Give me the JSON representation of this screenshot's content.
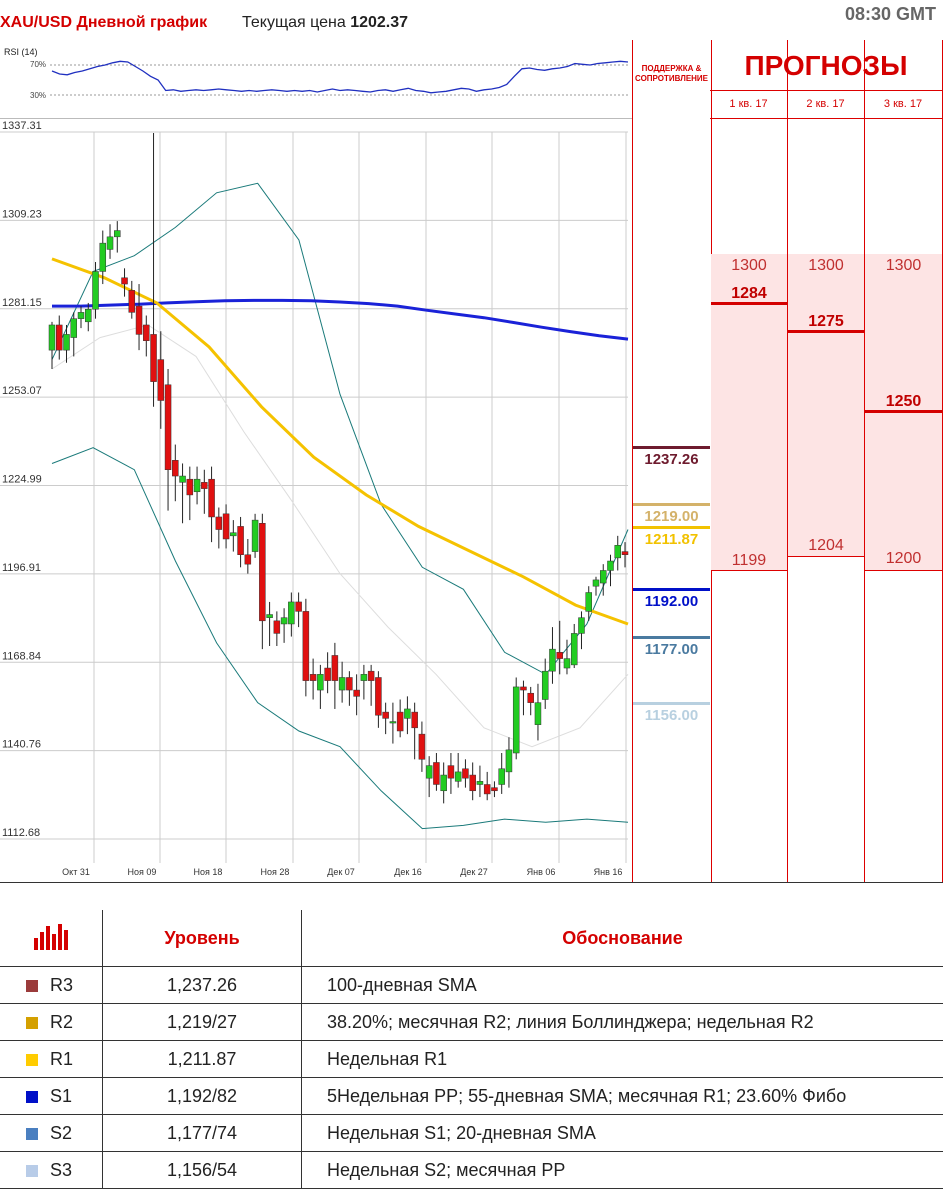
{
  "header": {
    "title": "XAU/USD Дневной график",
    "price_label": "Текущая цена",
    "price_value": "1202.37",
    "time": "08:30 GMT"
  },
  "rsi": {
    "label": "RSI (14)",
    "level_high": "70%",
    "level_low": "30%",
    "values": [
      62,
      58,
      57,
      60,
      62,
      65,
      68,
      70,
      73,
      75,
      74,
      68,
      62,
      55,
      50,
      36,
      37,
      35,
      36,
      37,
      36,
      37,
      38,
      37,
      36,
      35,
      36,
      35,
      36,
      37,
      36,
      35,
      36,
      35,
      36,
      34,
      36,
      38,
      36,
      37,
      36,
      35,
      34,
      36,
      37,
      35,
      37,
      39,
      36,
      35,
      33,
      34,
      35,
      37,
      39,
      38,
      35,
      37,
      38,
      40,
      44,
      55,
      65,
      66,
      64,
      63,
      65,
      66,
      68,
      72,
      71,
      70,
      72,
      73,
      74,
      75,
      74
    ]
  },
  "chart_data": {
    "type": "candlestick",
    "y_ticks": [
      "1337.31",
      "1309.23",
      "1281.15",
      "1253.07",
      "1224.99",
      "1196.91",
      "1168.84",
      "1140.76",
      "1112.68"
    ],
    "ylim": [
      1112.68,
      1337.31
    ],
    "x_ticks": [
      "Окт 31",
      "Ноя 09",
      "Ноя 18",
      "Ноя 28",
      "Дек 07",
      "Дек 16",
      "Дек 27",
      "Янв 06",
      "Янв 16"
    ],
    "candles": [
      [
        1268,
        1276,
        1262,
        1277
      ],
      [
        1276,
        1268,
        1265,
        1279
      ],
      [
        1268,
        1273,
        1264,
        1276
      ],
      [
        1272,
        1278,
        1266,
        1280
      ],
      [
        1278,
        1280,
        1275,
        1282
      ],
      [
        1277,
        1281,
        1274,
        1283
      ],
      [
        1281,
        1293,
        1278,
        1296
      ],
      [
        1293,
        1302,
        1289,
        1306
      ],
      [
        1300,
        1304,
        1297,
        1308
      ],
      [
        1304,
        1306,
        1299,
        1309
      ],
      [
        1291,
        1289,
        1285,
        1294
      ],
      [
        1287,
        1280,
        1278,
        1290
      ],
      [
        1282,
        1273,
        1268,
        1289
      ],
      [
        1276,
        1271,
        1266,
        1279
      ],
      [
        1273,
        1258,
        1250,
        1337
      ],
      [
        1265,
        1252,
        1243,
        1274
      ],
      [
        1257,
        1230,
        1217,
        1262
      ],
      [
        1233,
        1228,
        1220,
        1238
      ],
      [
        1226,
        1228,
        1213,
        1232
      ],
      [
        1227,
        1222,
        1214,
        1231
      ],
      [
        1223,
        1227,
        1219,
        1231
      ],
      [
        1226,
        1224,
        1216,
        1230
      ],
      [
        1227,
        1215,
        1207,
        1231
      ],
      [
        1215,
        1211,
        1205,
        1218
      ],
      [
        1216,
        1208,
        1205,
        1219
      ],
      [
        1209,
        1210,
        1204,
        1214
      ],
      [
        1212,
        1203,
        1199,
        1215
      ],
      [
        1203,
        1200,
        1197,
        1208
      ],
      [
        1204,
        1214,
        1202,
        1216
      ],
      [
        1213,
        1182,
        1173,
        1216
      ],
      [
        1183,
        1184,
        1174,
        1188
      ],
      [
        1182,
        1178,
        1174,
        1185
      ],
      [
        1181,
        1183,
        1175,
        1186
      ],
      [
        1181,
        1188,
        1177,
        1191
      ],
      [
        1188,
        1185,
        1180,
        1191
      ],
      [
        1185,
        1163,
        1158,
        1189
      ],
      [
        1165,
        1163,
        1157,
        1170
      ],
      [
        1160,
        1165,
        1154,
        1168
      ],
      [
        1167,
        1163,
        1159,
        1172
      ],
      [
        1171,
        1163,
        1154,
        1175
      ],
      [
        1160,
        1164,
        1156,
        1169
      ],
      [
        1164,
        1160,
        1155,
        1166
      ],
      [
        1160,
        1158,
        1152,
        1165
      ],
      [
        1163,
        1165,
        1157,
        1168
      ],
      [
        1166,
        1163,
        1155,
        1168
      ],
      [
        1164,
        1152,
        1148,
        1166
      ],
      [
        1153,
        1151,
        1146,
        1156
      ],
      [
        1150,
        1150,
        1143,
        1156
      ],
      [
        1153,
        1147,
        1145,
        1157
      ],
      [
        1151,
        1154,
        1146,
        1158
      ],
      [
        1153,
        1148,
        1138,
        1156
      ],
      [
        1146,
        1138,
        1134,
        1150
      ],
      [
        1132,
        1136,
        1126,
        1139
      ],
      [
        1137,
        1130,
        1128,
        1140
      ],
      [
        1128,
        1133,
        1124,
        1137
      ],
      [
        1136,
        1132,
        1127,
        1140
      ],
      [
        1131,
        1134,
        1129,
        1140
      ],
      [
        1135,
        1132,
        1129,
        1138
      ],
      [
        1133,
        1128,
        1125,
        1137
      ],
      [
        1130,
        1131,
        1126,
        1136
      ],
      [
        1130,
        1127,
        1125,
        1134
      ],
      [
        1129,
        1128,
        1126,
        1131
      ],
      [
        1130,
        1135,
        1127,
        1140
      ],
      [
        1134,
        1141,
        1129,
        1145
      ],
      [
        1140,
        1161,
        1138,
        1164
      ],
      [
        1161,
        1160,
        1152,
        1163
      ],
      [
        1159,
        1156,
        1152,
        1161
      ],
      [
        1149,
        1156,
        1144,
        1162
      ],
      [
        1157,
        1166,
        1154,
        1170
      ],
      [
        1166,
        1173,
        1162,
        1180
      ],
      [
        1172,
        1170,
        1165,
        1182
      ],
      [
        1167,
        1170,
        1165,
        1176
      ],
      [
        1168,
        1178,
        1167,
        1181
      ],
      [
        1178,
        1183,
        1173,
        1185
      ],
      [
        1185,
        1191,
        1182,
        1193
      ],
      [
        1193,
        1195,
        1190,
        1196
      ],
      [
        1194,
        1198,
        1190,
        1200
      ],
      [
        1198,
        1201,
        1193,
        1203
      ],
      [
        1202,
        1206,
        1198,
        1209
      ],
      [
        1204,
        1203,
        1199,
        1207
      ]
    ],
    "sma_blue": [
      1282,
      1282,
      1282.3,
      1282.6,
      1283,
      1283.4,
      1283.7,
      1283.8,
      1283.8,
      1283.7,
      1283.3,
      1282.8,
      1282,
      1280.7,
      1279.5,
      1278.3,
      1276.8,
      1275.3,
      1273.9,
      1272.6,
      1271.5
    ],
    "sma_yellow": [
      1297,
      1291,
      1283,
      1269,
      1250,
      1234,
      1222,
      1212,
      1204,
      1196,
      1187,
      1181
    ],
    "bollinger_upper": [
      1265,
      1293,
      1298,
      1307,
      1318,
      1321,
      1303,
      1254,
      1219,
      1199,
      1192,
      1172,
      1165,
      1181,
      1211
    ],
    "bollinger_lower": [
      1232,
      1237,
      1230,
      1201,
      1175,
      1156,
      1147,
      1142,
      1128,
      1116,
      1117,
      1119,
      1118,
      1119,
      1118
    ],
    "bollinger_mid": [
      1262,
      1272,
      1276,
      1266,
      1242,
      1220,
      1197,
      1180,
      1165,
      1148,
      1142,
      1148,
      1165
    ],
    "axis_labels": {
      "x": "",
      "y": ""
    }
  },
  "support_resistance": {
    "header": "ПОДДЕРЖКА & СОПРОТИВЛЕНИЕ",
    "levels": [
      {
        "label": "1237.26",
        "value": 1237.26,
        "color": "#6e1b2e"
      },
      {
        "label": "1219.00",
        "value": 1219.0,
        "color": "#d4b26a"
      },
      {
        "label": "1211.87",
        "value": 1211.87,
        "color": "#f2c200"
      },
      {
        "label": "1192.00",
        "value": 1192.0,
        "color": "#0010c8"
      },
      {
        "label": "1177.00",
        "value": 1177.0,
        "color": "#4a7aa0"
      },
      {
        "label": "1156.00",
        "value": 1156.0,
        "color": "#b8d0e0"
      }
    ]
  },
  "forecasts": {
    "title": "ПРОГНОЗЫ",
    "quarters": [
      {
        "label": "1 кв. 17",
        "high": "1300",
        "target": "1284",
        "low": "1199"
      },
      {
        "label": "2 кв. 17",
        "high": "1300",
        "target": "1275",
        "low": "1204"
      },
      {
        "label": "3 кв. 17",
        "high": "1300",
        "target": "1250",
        "low": "1200"
      }
    ]
  },
  "table": {
    "header_level": "Уровень",
    "header_reason": "Обоснование",
    "rows": [
      {
        "name": "R3",
        "color": "#9b3b3b",
        "level": "1,237.26",
        "reason": "100-дневная SMA"
      },
      {
        "name": "R2",
        "color": "#d4a000",
        "level": "1,219/27",
        "reason": "38.20%; месячная R2; линия Боллинджера; недельная R2"
      },
      {
        "name": "R1",
        "color": "#ffcc00",
        "level": "1,211.87",
        "reason": "Недельная R1"
      },
      {
        "name": "S1",
        "color": "#0010c8",
        "level": "1,192/82",
        "reason": "5Недельная PP; 55-дневная SMA; месячная R1; 23.60% Фибо"
      },
      {
        "name": "S2",
        "color": "#4a7fc0",
        "level": "1,177/74",
        "reason": "Недельная S1; 20-дневная SMA"
      },
      {
        "name": "S3",
        "color": "#b8cce8",
        "level": "1,156/54",
        "reason": "Недельная S2; месячная PP"
      }
    ]
  }
}
